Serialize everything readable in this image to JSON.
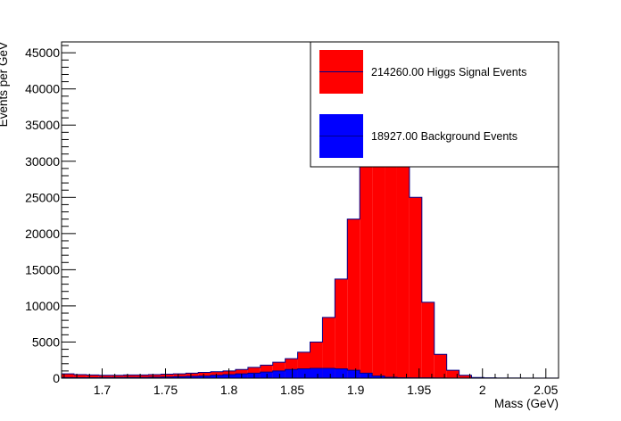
{
  "chart_data": {
    "type": "bar",
    "title": "",
    "xlabel": "Mass (GeV)",
    "ylabel": "Events per GeV",
    "xlim": [
      1.668,
      2.06
    ],
    "ylim": [
      0,
      46500
    ],
    "bin_width": 0.0098,
    "x_ticks": [
      "1.7",
      "1.75",
      "1.8",
      "1.85",
      "1.9",
      "1.95",
      "2",
      "2.05"
    ],
    "x_tick_values": [
      1.7,
      1.75,
      1.8,
      1.85,
      1.9,
      1.95,
      2.0,
      2.05
    ],
    "y_ticks": [
      "0",
      "5000",
      "10000",
      "15000",
      "20000",
      "25000",
      "30000",
      "35000",
      "40000",
      "45000"
    ],
    "y_tick_values": [
      0,
      5000,
      10000,
      15000,
      20000,
      25000,
      30000,
      35000,
      40000,
      45000
    ],
    "legend_position": "top-right",
    "series": [
      {
        "name": "214260.00 Higgs Signal Events",
        "color": "#ff0000",
        "edge_color": "#00008b",
        "values": [
          600,
          500,
          450,
          400,
          400,
          450,
          450,
          500,
          550,
          600,
          700,
          800,
          900,
          1000,
          1200,
          1500,
          1800,
          2200,
          2700,
          3600,
          5000,
          8400,
          13700,
          22000,
          33800,
          44200,
          47000,
          35000,
          25000,
          10500,
          3300,
          1100,
          400,
          100,
          50,
          20,
          10,
          5,
          5,
          5
        ]
      },
      {
        "name": "18927.00 Background Events",
        "color": "#0000ff",
        "edge_color": "#00008b",
        "values": [
          80,
          60,
          60,
          70,
          80,
          100,
          100,
          120,
          150,
          200,
          250,
          300,
          400,
          500,
          600,
          700,
          850,
          1000,
          1200,
          1300,
          1350,
          1350,
          1300,
          1100,
          700,
          300,
          120,
          60,
          50,
          40,
          30,
          20,
          15,
          10,
          10,
          10,
          10,
          10,
          10,
          10
        ]
      }
    ]
  }
}
